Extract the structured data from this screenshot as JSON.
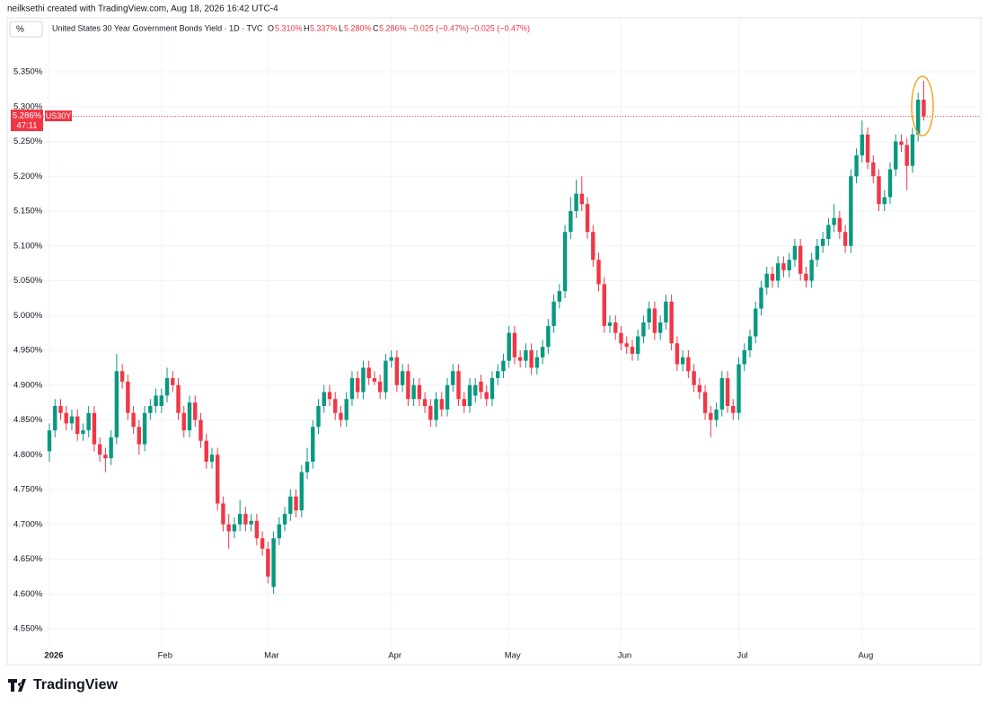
{
  "header": {
    "credit": "neilksethi created with TradingView.com, Aug 18, 2026 16:42 UTC-4",
    "unit": "%",
    "symbol": "United States 30 Year Government Bonds Yield · 1D · TVC"
  },
  "legend": {
    "o_key": "O",
    "o": "5.310%",
    "h_key": "H",
    "h": "5.337%",
    "l_key": "L",
    "l": "5.280%",
    "c_key": "C",
    "c": "5.286%",
    "change": "−0.025 (−0.47%)",
    "change2": "−0.025 (−0.47%)"
  },
  "price_tag": {
    "price": "5.286%",
    "countdown": "47:11",
    "ticker": "US30Y"
  },
  "footer": "TradingView",
  "chart_data": {
    "type": "candlestick",
    "up_color": "#089981",
    "down_color": "#f23645",
    "grid": true,
    "ylim": [
      4.5,
      5.4
    ],
    "yticks": [
      {
        "value": 4.55,
        "label": "4.550%"
      },
      {
        "value": 4.6,
        "label": "4.600%"
      },
      {
        "value": 4.65,
        "label": "4.650%"
      },
      {
        "value": 4.7,
        "label": "4.700%"
      },
      {
        "value": 4.75,
        "label": "4.750%"
      },
      {
        "value": 4.8,
        "label": "4.800%"
      },
      {
        "value": 4.85,
        "label": "4.850%"
      },
      {
        "value": 4.9,
        "label": "4.900%"
      },
      {
        "value": 4.95,
        "label": "4.950%"
      },
      {
        "value": 5.0,
        "label": "5.000%"
      },
      {
        "value": 5.05,
        "label": "5.050%"
      },
      {
        "value": 5.1,
        "label": "5.100%"
      },
      {
        "value": 5.15,
        "label": "5.150%"
      },
      {
        "value": 5.2,
        "label": "5.200%"
      },
      {
        "value": 5.25,
        "label": "5.250%"
      },
      {
        "value": 5.3,
        "label": "5.300%"
      },
      {
        "value": 5.35,
        "label": "5.350%"
      }
    ],
    "categories": [
      "2026",
      null,
      null,
      null,
      null,
      null,
      null,
      null,
      null,
      null,
      null,
      null,
      null,
      null,
      null,
      null,
      null,
      null,
      null,
      null,
      "Feb",
      null,
      null,
      null,
      null,
      null,
      null,
      null,
      null,
      null,
      null,
      null,
      null,
      null,
      null,
      null,
      null,
      null,
      null,
      "Mar",
      null,
      null,
      null,
      null,
      null,
      null,
      null,
      null,
      null,
      null,
      null,
      null,
      null,
      null,
      null,
      null,
      null,
      null,
      null,
      null,
      null,
      "Apr",
      null,
      null,
      null,
      null,
      null,
      null,
      null,
      null,
      null,
      null,
      null,
      null,
      null,
      null,
      null,
      null,
      null,
      null,
      null,
      null,
      "May",
      null,
      null,
      null,
      null,
      null,
      null,
      null,
      null,
      null,
      null,
      null,
      null,
      null,
      null,
      null,
      null,
      null,
      null,
      null,
      "Jun",
      null,
      null,
      null,
      null,
      null,
      null,
      null,
      null,
      null,
      null,
      null,
      null,
      null,
      null,
      null,
      null,
      null,
      null,
      null,
      null,
      "Jul",
      null,
      null,
      null,
      null,
      null,
      null,
      null,
      null,
      null,
      null,
      null,
      null,
      null,
      null,
      null,
      null,
      null,
      null,
      null,
      null,
      null,
      "Aug",
      null,
      null,
      null,
      null,
      null,
      null,
      null,
      null,
      null,
      null,
      null
    ],
    "open": [
      4.805,
      4.835,
      4.87,
      4.86,
      4.845,
      4.855,
      4.83,
      4.835,
      4.86,
      4.815,
      4.8,
      4.795,
      4.825,
      4.92,
      4.905,
      4.86,
      4.84,
      4.815,
      4.86,
      4.87,
      4.87,
      4.885,
      4.91,
      4.9,
      4.86,
      4.835,
      4.875,
      4.85,
      4.82,
      4.79,
      4.8,
      4.73,
      4.7,
      4.69,
      4.7,
      4.715,
      4.7,
      4.705,
      4.68,
      4.665,
      4.61,
      4.68,
      4.7,
      4.715,
      4.74,
      4.72,
      4.775,
      4.79,
      4.84,
      4.87,
      4.89,
      4.88,
      4.86,
      4.85,
      4.88,
      4.91,
      4.89,
      4.925,
      4.91,
      4.905,
      4.89,
      4.935,
      4.94,
      4.9,
      4.92,
      4.88,
      4.9,
      4.88,
      4.87,
      4.85,
      4.88,
      4.865,
      4.9,
      4.92,
      4.88,
      4.87,
      4.885,
      4.905,
      4.89,
      4.88,
      4.91,
      4.92,
      4.935,
      4.975,
      4.94,
      4.935,
      4.95,
      4.925,
      4.94,
      4.955,
      4.985,
      5.02,
      5.035,
      5.12,
      5.15,
      5.175,
      5.16,
      5.12,
      5.08,
      5.045,
      4.985,
      4.99,
      4.975,
      4.96,
      4.955,
      4.945,
      4.97,
      4.99,
      5.01,
      4.975,
      4.99,
      5.02,
      4.96,
      4.93,
      4.94,
      4.92,
      4.9,
      4.89,
      4.86,
      4.85,
      4.865,
      4.91,
      4.87,
      4.86,
      4.93,
      4.95,
      4.97,
      5.01,
      5.04,
      5.06,
      5.05,
      5.075,
      5.065,
      5.08,
      5.1,
      5.06,
      5.05,
      5.08,
      5.1,
      5.11,
      5.13,
      5.14,
      5.12,
      5.1,
      5.2,
      5.23,
      5.26,
      5.22,
      5.2,
      5.16,
      5.17,
      5.21,
      5.25,
      5.245,
      5.215,
      5.26,
      5.31
    ],
    "high": [
      4.845,
      4.88,
      4.88,
      4.87,
      4.865,
      4.865,
      4.845,
      4.87,
      4.87,
      4.825,
      4.81,
      4.835,
      4.945,
      4.93,
      4.915,
      4.87,
      4.85,
      4.87,
      4.88,
      4.895,
      4.895,
      4.925,
      4.92,
      4.91,
      4.87,
      4.885,
      4.885,
      4.86,
      4.83,
      4.81,
      4.81,
      4.74,
      4.715,
      4.71,
      4.735,
      4.725,
      4.715,
      4.715,
      4.69,
      4.675,
      4.69,
      4.71,
      4.725,
      4.75,
      4.75,
      4.785,
      4.81,
      4.85,
      4.88,
      4.9,
      4.9,
      4.89,
      4.87,
      4.89,
      4.92,
      4.92,
      4.935,
      4.935,
      4.92,
      4.915,
      4.945,
      4.95,
      4.95,
      4.93,
      4.93,
      4.91,
      4.91,
      4.89,
      4.88,
      4.89,
      4.89,
      4.91,
      4.93,
      4.93,
      4.89,
      4.91,
      4.91,
      4.915,
      4.9,
      4.92,
      4.93,
      4.945,
      4.985,
      4.985,
      4.95,
      4.96,
      4.96,
      4.95,
      4.965,
      4.995,
      5.03,
      5.045,
      5.13,
      5.17,
      5.195,
      5.2,
      5.17,
      5.13,
      5.09,
      5.055,
      5.0,
      5.0,
      4.985,
      4.97,
      4.965,
      4.98,
      5.0,
      5.02,
      5.02,
      5.0,
      5.03,
      5.03,
      4.97,
      4.95,
      4.95,
      4.93,
      4.91,
      4.9,
      4.87,
      4.875,
      4.92,
      4.92,
      4.88,
      4.94,
      4.96,
      4.98,
      5.02,
      5.05,
      5.07,
      5.07,
      5.085,
      5.085,
      5.09,
      5.11,
      5.11,
      5.07,
      5.09,
      5.11,
      5.12,
      5.14,
      5.16,
      5.15,
      5.13,
      5.21,
      5.24,
      5.28,
      5.27,
      5.23,
      5.21,
      5.18,
      5.22,
      5.26,
      5.26,
      5.255,
      5.27,
      5.32,
      5.337
    ],
    "low": [
      4.79,
      4.825,
      4.85,
      4.835,
      4.835,
      4.82,
      4.82,
      4.825,
      4.805,
      4.79,
      4.775,
      4.785,
      4.815,
      4.895,
      4.85,
      4.83,
      4.8,
      4.805,
      4.85,
      4.86,
      4.86,
      4.875,
      4.89,
      4.85,
      4.825,
      4.825,
      4.84,
      4.81,
      4.78,
      4.78,
      4.72,
      4.69,
      4.665,
      4.68,
      4.69,
      4.69,
      4.69,
      4.67,
      4.655,
      4.615,
      4.6,
      4.67,
      4.69,
      4.705,
      4.71,
      4.71,
      4.765,
      4.78,
      4.83,
      4.86,
      4.87,
      4.85,
      4.84,
      4.84,
      4.87,
      4.88,
      4.88,
      4.9,
      4.9,
      4.88,
      4.88,
      4.925,
      4.89,
      4.89,
      4.87,
      4.87,
      4.87,
      4.86,
      4.84,
      4.84,
      4.855,
      4.855,
      4.89,
      4.87,
      4.86,
      4.86,
      4.875,
      4.88,
      4.87,
      4.87,
      4.9,
      4.91,
      4.925,
      4.93,
      4.925,
      4.925,
      4.915,
      4.915,
      4.93,
      4.945,
      4.975,
      5.01,
      5.025,
      5.11,
      5.14,
      5.15,
      5.11,
      5.07,
      5.035,
      4.975,
      4.975,
      4.965,
      4.95,
      4.945,
      4.935,
      4.935,
      4.96,
      4.98,
      4.965,
      4.965,
      4.98,
      4.95,
      4.92,
      4.92,
      4.91,
      4.89,
      4.88,
      4.85,
      4.825,
      4.84,
      4.855,
      4.86,
      4.85,
      4.85,
      4.92,
      4.94,
      4.96,
      5.0,
      5.03,
      5.04,
      5.04,
      5.055,
      5.055,
      5.07,
      5.05,
      5.04,
      5.04,
      5.07,
      5.09,
      5.1,
      5.12,
      5.11,
      5.09,
      5.09,
      5.19,
      5.22,
      5.21,
      5.19,
      5.15,
      5.15,
      5.16,
      5.2,
      5.235,
      5.18,
      5.205,
      5.25,
      5.28
    ],
    "close": [
      4.835,
      4.87,
      4.86,
      4.845,
      4.855,
      4.83,
      4.835,
      4.86,
      4.815,
      4.8,
      4.795,
      4.825,
      4.92,
      4.905,
      4.86,
      4.84,
      4.815,
      4.86,
      4.87,
      4.885,
      4.885,
      4.91,
      4.9,
      4.86,
      4.835,
      4.875,
      4.85,
      4.82,
      4.79,
      4.8,
      4.73,
      4.7,
      4.69,
      4.7,
      4.715,
      4.7,
      4.705,
      4.68,
      4.665,
      4.625,
      4.68,
      4.7,
      4.715,
      4.74,
      4.72,
      4.775,
      4.79,
      4.84,
      4.87,
      4.89,
      4.88,
      4.86,
      4.85,
      4.88,
      4.91,
      4.89,
      4.925,
      4.91,
      4.905,
      4.89,
      4.935,
      4.94,
      4.9,
      4.92,
      4.88,
      4.9,
      4.88,
      4.87,
      4.85,
      4.88,
      4.865,
      4.9,
      4.92,
      4.88,
      4.87,
      4.9,
      4.9,
      4.89,
      4.88,
      4.91,
      4.92,
      4.935,
      4.975,
      4.94,
      4.935,
      4.95,
      4.925,
      4.94,
      4.955,
      4.985,
      5.02,
      5.035,
      5.12,
      5.15,
      5.175,
      5.16,
      5.12,
      5.08,
      5.045,
      4.985,
      4.99,
      4.975,
      4.96,
      4.955,
      4.945,
      4.97,
      4.99,
      5.01,
      4.975,
      4.99,
      5.02,
      4.96,
      4.93,
      4.94,
      4.92,
      4.9,
      4.89,
      4.86,
      4.85,
      4.865,
      4.91,
      4.87,
      4.86,
      4.93,
      4.95,
      4.97,
      5.01,
      5.04,
      5.06,
      5.05,
      5.075,
      5.065,
      5.08,
      5.1,
      5.06,
      5.05,
      5.08,
      5.1,
      5.11,
      5.13,
      5.14,
      5.12,
      5.1,
      5.2,
      5.23,
      5.26,
      5.22,
      5.2,
      5.16,
      5.17,
      5.21,
      5.25,
      5.245,
      5.215,
      5.26,
      5.31,
      5.286
    ]
  }
}
